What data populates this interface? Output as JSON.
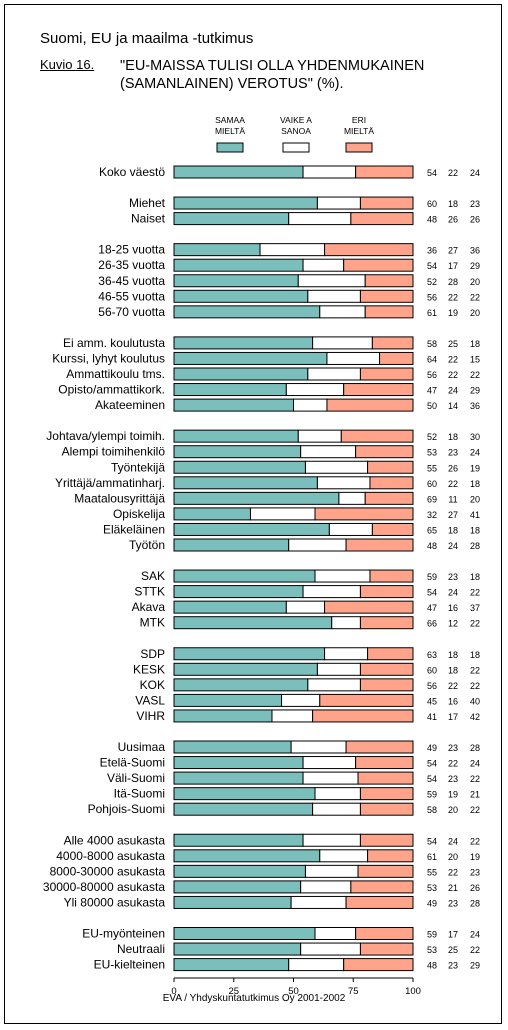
{
  "header": {
    "title": "Suomi, EU ja maailma -tutkimus",
    "figure_label": "Kuvio 16.",
    "subtitle_line1": "\"EU-MAISSA TULISI OLLA YHDENMUKAINEN",
    "subtitle_line2": "(SAMANLAINEN) VEROTUS\" (%)."
  },
  "footer": {
    "source": "EVA / Yhdyskuntatutkimus Oy 2001-2002"
  },
  "colors": {
    "samaa": "#7ABFBC",
    "vaikea": "#FFFFFF",
    "eri": "#FFA38A",
    "border": "#000000"
  },
  "chart_data": {
    "type": "bar",
    "orientation": "horizontal",
    "stacked": true,
    "xlim": [
      0,
      100
    ],
    "x_ticks": [
      0,
      25,
      50,
      75,
      100
    ],
    "grid": false,
    "legend_placement": "top",
    "series": [
      {
        "name": "SAMAA MIELTÄ",
        "legend_lines": [
          "SAMAA",
          "MIELTÄ"
        ],
        "color": "#7ABFBC"
      },
      {
        "name": "VAIKEA SANOA",
        "legend_lines": [
          "VAIKE A",
          "SANOA"
        ],
        "color": "#FFFFFF"
      },
      {
        "name": "ERI MIELTÄ",
        "legend_lines": [
          "ERI",
          "MIELTÄ"
        ],
        "color": "#FFA38A"
      }
    ],
    "groups": [
      {
        "rows": [
          {
            "label": "Koko väestö",
            "values": [
              54,
              22,
              24
            ]
          }
        ]
      },
      {
        "rows": [
          {
            "label": "Miehet",
            "values": [
              60,
              18,
              23
            ]
          },
          {
            "label": "Naiset",
            "values": [
              48,
              26,
              26
            ]
          }
        ]
      },
      {
        "rows": [
          {
            "label": "18-25 vuotta",
            "values": [
              36,
              27,
              36
            ]
          },
          {
            "label": "26-35 vuotta",
            "values": [
              54,
              17,
              29
            ]
          },
          {
            "label": "36-45 vuotta",
            "values": [
              52,
              28,
              20
            ]
          },
          {
            "label": "46-55 vuotta",
            "values": [
              56,
              22,
              22
            ]
          },
          {
            "label": "56-70 vuotta",
            "values": [
              61,
              19,
              20
            ]
          }
        ]
      },
      {
        "rows": [
          {
            "label": "Ei amm. koulutusta",
            "values": [
              58,
              25,
              18
            ]
          },
          {
            "label": "Kurssi, lyhyt koulutus",
            "values": [
              64,
              22,
              15
            ]
          },
          {
            "label": "Ammattikoulu tms.",
            "values": [
              56,
              22,
              22
            ]
          },
          {
            "label": "Opisto/ammattikork.",
            "values": [
              47,
              24,
              29
            ]
          },
          {
            "label": "Akateeminen",
            "values": [
              50,
              14,
              36
            ]
          }
        ]
      },
      {
        "rows": [
          {
            "label": "Johtava/ylempi toimih.",
            "values": [
              52,
              18,
              30
            ]
          },
          {
            "label": "Alempi toimihenkilö",
            "values": [
              53,
              23,
              24
            ]
          },
          {
            "label": "Työntekijä",
            "values": [
              55,
              26,
              19
            ]
          },
          {
            "label": "Yrittäjä/ammatinharj.",
            "values": [
              60,
              22,
              18
            ]
          },
          {
            "label": "Maatalousyrittäjä",
            "values": [
              69,
              11,
              20
            ]
          },
          {
            "label": "Opiskelija",
            "values": [
              32,
              27,
              41
            ]
          },
          {
            "label": "Eläkeläinen",
            "values": [
              65,
              18,
              18
            ]
          },
          {
            "label": "Työtön",
            "values": [
              48,
              24,
              28
            ]
          }
        ]
      },
      {
        "rows": [
          {
            "label": "SAK",
            "values": [
              59,
              23,
              18
            ]
          },
          {
            "label": "STTK",
            "values": [
              54,
              24,
              22
            ]
          },
          {
            "label": "Akava",
            "values": [
              47,
              16,
              37
            ]
          },
          {
            "label": "MTK",
            "values": [
              66,
              12,
              22
            ]
          }
        ]
      },
      {
        "rows": [
          {
            "label": "SDP",
            "values": [
              63,
              18,
              18
            ]
          },
          {
            "label": "KESK",
            "values": [
              60,
              18,
              22
            ]
          },
          {
            "label": "KOK",
            "values": [
              56,
              22,
              22
            ]
          },
          {
            "label": "VASL",
            "values": [
              45,
              16,
              40
            ]
          },
          {
            "label": "VIHR",
            "values": [
              41,
              17,
              42
            ]
          }
        ]
      },
      {
        "rows": [
          {
            "label": "Uusimaa",
            "values": [
              49,
              23,
              28
            ]
          },
          {
            "label": "Etelä-Suomi",
            "values": [
              54,
              22,
              24
            ]
          },
          {
            "label": "Väli-Suomi",
            "values": [
              54,
              23,
              22
            ]
          },
          {
            "label": "Itä-Suomi",
            "values": [
              59,
              19,
              21
            ]
          },
          {
            "label": "Pohjois-Suomi",
            "values": [
              58,
              20,
              22
            ]
          }
        ]
      },
      {
        "rows": [
          {
            "label": "Alle 4000 asukasta",
            "values": [
              54,
              24,
              22
            ]
          },
          {
            "label": "4000-8000 asukasta",
            "values": [
              61,
              20,
              19
            ]
          },
          {
            "label": "8000-30000 asukasta",
            "values": [
              55,
              22,
              23
            ]
          },
          {
            "label": "30000-80000 asukasta",
            "values": [
              53,
              21,
              26
            ]
          },
          {
            "label": "Yli 80000 asukasta",
            "values": [
              49,
              23,
              28
            ]
          }
        ]
      },
      {
        "rows": [
          {
            "label": "EU-myönteinen",
            "values": [
              59,
              17,
              24
            ]
          },
          {
            "label": "Neutraali",
            "values": [
              53,
              25,
              22
            ]
          },
          {
            "label": "EU-kielteinen",
            "values": [
              48,
              23,
              29
            ]
          }
        ]
      }
    ]
  }
}
